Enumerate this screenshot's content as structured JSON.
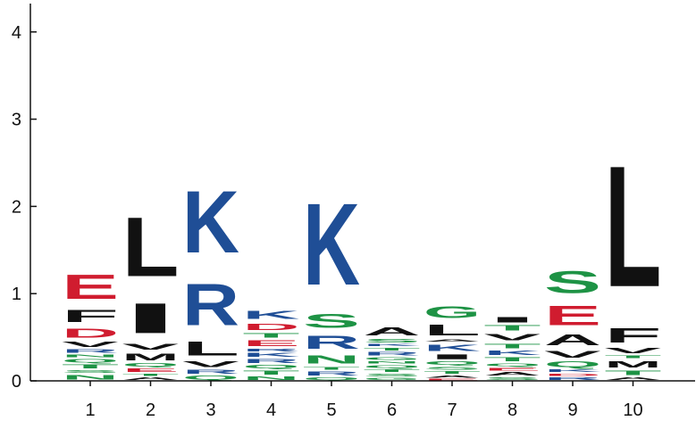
{
  "chart_data": {
    "type": "sequence-logo",
    "title": "",
    "xlabel": "",
    "ylabel": "",
    "ylim": [
      0,
      4.3
    ],
    "y_ticks": [
      0,
      1,
      2,
      3,
      4
    ],
    "positions": [
      "1",
      "2",
      "3",
      "4",
      "5",
      "6",
      "7",
      "8",
      "9",
      "10"
    ],
    "colors": {
      "acidic": "#d01c2f",
      "basic": "#1f4e96",
      "polar": "#1e9345",
      "hydrophobic": "#111111"
    },
    "columns": [
      {
        "position": "1",
        "letters": [
          {
            "letter": "N",
            "height": 0.08
          },
          {
            "letter": "S",
            "height": 0.05
          },
          {
            "letter": "T",
            "height": 0.07
          },
          {
            "letter": "Q",
            "height": 0.06
          },
          {
            "letter": "N",
            "height": 0.05
          },
          {
            "letter": "R",
            "height": 0.06
          },
          {
            "letter": "V",
            "height": 0.09
          },
          {
            "letter": "D",
            "height": 0.17
          },
          {
            "letter": "F",
            "height": 0.22
          },
          {
            "letter": "E",
            "height": 0.45
          }
        ]
      },
      {
        "position": "2",
        "letters": [
          {
            "letter": "A",
            "height": 0.05
          },
          {
            "letter": "T",
            "height": 0.04
          },
          {
            "letter": "E",
            "height": 0.06
          },
          {
            "letter": "Q",
            "height": 0.06
          },
          {
            "letter": "M",
            "height": 0.13
          },
          {
            "letter": "V",
            "height": 0.1
          },
          {
            "letter": "I",
            "height": 0.55
          },
          {
            "letter": "L",
            "height": 1.08
          }
        ]
      },
      {
        "position": "3",
        "letters": [
          {
            "letter": "Q",
            "height": 0.07
          },
          {
            "letter": "R",
            "height": 0.07
          },
          {
            "letter": "V",
            "height": 0.1
          },
          {
            "letter": "L",
            "height": 0.25
          },
          {
            "letter": "R",
            "height": 0.76
          },
          {
            "letter": "K",
            "height": 1.14
          }
        ]
      },
      {
        "position": "4",
        "letters": [
          {
            "letter": "N",
            "height": 0.06
          },
          {
            "letter": "T",
            "height": 0.07
          },
          {
            "letter": "Q",
            "height": 0.06
          },
          {
            "letter": "R",
            "height": 0.07
          },
          {
            "letter": "K",
            "height": 0.07
          },
          {
            "letter": "R",
            "height": 0.05
          },
          {
            "letter": "E",
            "height": 0.1
          },
          {
            "letter": "T",
            "height": 0.08
          },
          {
            "letter": "D",
            "height": 0.12
          },
          {
            "letter": "K",
            "height": 0.15
          }
        ]
      },
      {
        "position": "5",
        "letters": [
          {
            "letter": "Q",
            "height": 0.05
          },
          {
            "letter": "R",
            "height": 0.07
          },
          {
            "letter": "T",
            "height": 0.05
          },
          {
            "letter": "N",
            "height": 0.15
          },
          {
            "letter": "R",
            "height": 0.24
          },
          {
            "letter": "S",
            "height": 0.25
          },
          {
            "letter": "K",
            "height": 1.5
          }
        ]
      },
      {
        "position": "6",
        "letters": [
          {
            "letter": "G",
            "height": 0.04
          },
          {
            "letter": "S",
            "height": 0.05
          },
          {
            "letter": "T",
            "height": 0.05
          },
          {
            "letter": "Q",
            "height": 0.05
          },
          {
            "letter": "N",
            "height": 0.04
          },
          {
            "letter": "G",
            "height": 0.05
          },
          {
            "letter": "R",
            "height": 0.06
          },
          {
            "letter": "T",
            "height": 0.05
          },
          {
            "letter": "K",
            "height": 0.04
          },
          {
            "letter": "S",
            "height": 0.06
          },
          {
            "letter": "A",
            "height": 0.15
          }
        ]
      },
      {
        "position": "7",
        "letters": [
          {
            "letter": "E",
            "height": 0.03
          },
          {
            "letter": "A",
            "height": 0.04
          },
          {
            "letter": "T",
            "height": 0.05
          },
          {
            "letter": "S",
            "height": 0.05
          },
          {
            "letter": "Q",
            "height": 0.06
          },
          {
            "letter": "I",
            "height": 0.09
          },
          {
            "letter": "K",
            "height": 0.12
          },
          {
            "letter": "A",
            "height": 0.04
          },
          {
            "letter": "L",
            "height": 0.2
          },
          {
            "letter": "G",
            "height": 0.21
          }
        ]
      },
      {
        "position": "8",
        "letters": [
          {
            "letter": "S",
            "height": 0.05
          },
          {
            "letter": "A",
            "height": 0.06
          },
          {
            "letter": "E",
            "height": 0.05
          },
          {
            "letter": "Q",
            "height": 0.05
          },
          {
            "letter": "T",
            "height": 0.07
          },
          {
            "letter": "K",
            "height": 0.08
          },
          {
            "letter": "T",
            "height": 0.08
          },
          {
            "letter": "V",
            "height": 0.12
          },
          {
            "letter": "T",
            "height": 0.09
          },
          {
            "letter": "I",
            "height": 0.1
          }
        ]
      },
      {
        "position": "9",
        "letters": [
          {
            "letter": "R",
            "height": 0.05
          },
          {
            "letter": "D",
            "height": 0.04
          },
          {
            "letter": "K",
            "height": 0.05
          },
          {
            "letter": "Q",
            "height": 0.1
          },
          {
            "letter": "V",
            "height": 0.13
          },
          {
            "letter": "A",
            "height": 0.2
          },
          {
            "letter": "E",
            "height": 0.36
          },
          {
            "letter": "S",
            "height": 0.4
          }
        ]
      },
      {
        "position": "10",
        "letters": [
          {
            "letter": "A",
            "height": 0.05
          },
          {
            "letter": "T",
            "height": 0.08
          },
          {
            "letter": "M",
            "height": 0.12
          },
          {
            "letter": "T",
            "height": 0.05
          },
          {
            "letter": "V",
            "height": 0.09
          },
          {
            "letter": "F",
            "height": 0.26
          },
          {
            "letter": "L",
            "height": 2.22
          }
        ]
      }
    ]
  }
}
